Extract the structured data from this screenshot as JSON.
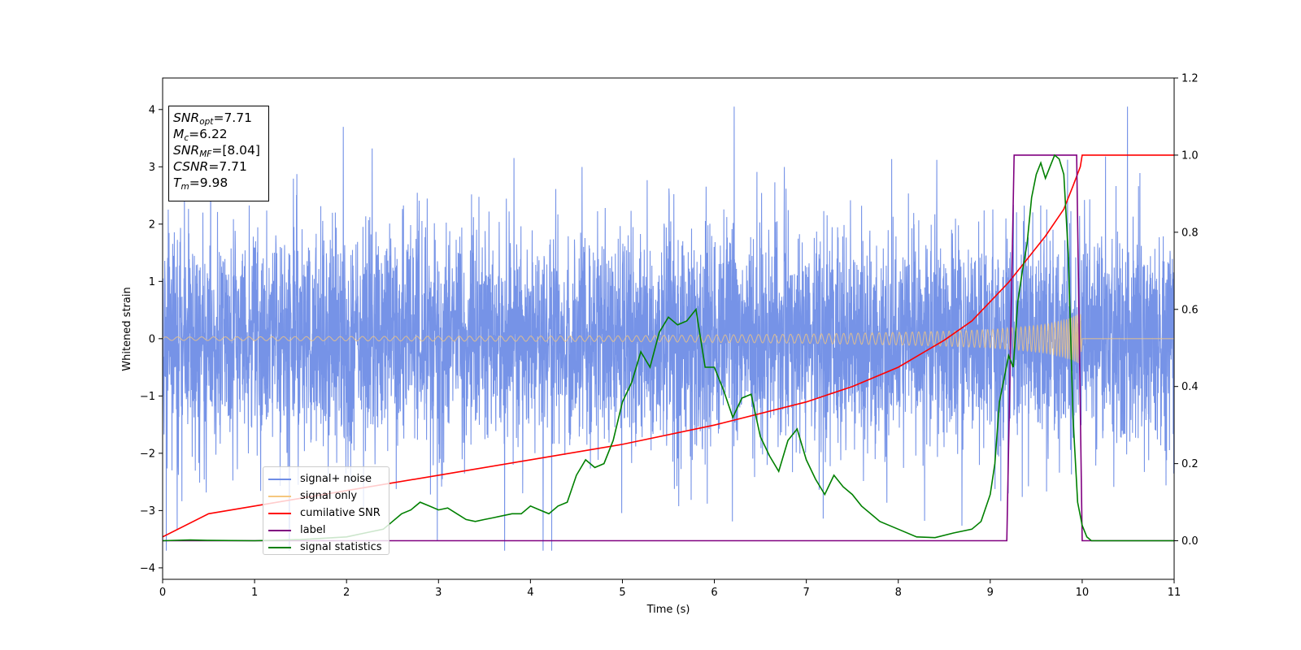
{
  "chart_data": {
    "type": "line",
    "xlabel": "Time (s)",
    "ylabel": "Whitened strain",
    "xlim": [
      0,
      11
    ],
    "ylim_left": [
      -4.2,
      4.55
    ],
    "ylim_right": [
      -0.1,
      1.2
    ],
    "xticks": [
      "0",
      "1",
      "2",
      "3",
      "4",
      "5",
      "6",
      "7",
      "8",
      "9",
      "10",
      "11"
    ],
    "yticks_left": [
      "−4",
      "−3",
      "−2",
      "−1",
      "0",
      "1",
      "2",
      "3",
      "4"
    ],
    "yticks_right": [
      "0.0",
      "0.2",
      "0.4",
      "0.6",
      "0.8",
      "1.0",
      "1.2"
    ],
    "legend_position": "lower-left",
    "info_box": {
      "snr_opt": "7.71",
      "mc": "6.22",
      "snr_mf": "[8.04]",
      "csnr": "7.71",
      "tm": "9.98"
    },
    "series": [
      {
        "name": "signal+ noise",
        "axis": "left",
        "color": "#6f8de6",
        "description_values": "noise band roughly between -2.3 and 2.3 with spikes up to about 4.0 and down to about -3.7, 0 to 11 s"
      },
      {
        "name": "signal only",
        "axis": "left",
        "color": "#f5c77e",
        "envelope": {
          "t": [
            0,
            5,
            7,
            8,
            8.5,
            9,
            9.3,
            9.6,
            9.8,
            9.9,
            9.98,
            10,
            11
          ],
          "amp": [
            0.03,
            0.05,
            0.08,
            0.11,
            0.13,
            0.16,
            0.2,
            0.25,
            0.32,
            0.38,
            0.45,
            0.0,
            0.0
          ]
        }
      },
      {
        "name": "cumilative SNR",
        "axis": "right",
        "color": "#ff0000",
        "x": [
          0,
          0.5,
          1,
          2,
          3,
          4,
          5,
          6,
          7,
          7.5,
          8,
          8.5,
          8.8,
          9,
          9.2,
          9.4,
          9.6,
          9.8,
          9.9,
          9.98,
          10,
          11
        ],
        "y": [
          0.01,
          0.07,
          0.09,
          0.13,
          0.17,
          0.21,
          0.25,
          0.3,
          0.36,
          0.4,
          0.45,
          0.52,
          0.57,
          0.62,
          0.67,
          0.73,
          0.79,
          0.86,
          0.92,
          0.97,
          1.0,
          1.0
        ]
      },
      {
        "name": "label",
        "axis": "right",
        "color": "#800080",
        "x": [
          0,
          9.18,
          9.26,
          9.94,
          10.0,
          11
        ],
        "y": [
          0,
          0,
          1,
          1,
          0,
          0
        ]
      },
      {
        "name": "signal statistics",
        "axis": "right",
        "color": "#008000",
        "x": [
          0,
          0.3,
          0.5,
          1,
          1.5,
          2,
          2.2,
          2.4,
          2.5,
          2.6,
          2.7,
          2.8,
          2.9,
          3.0,
          3.1,
          3.2,
          3.3,
          3.4,
          3.5,
          3.6,
          3.8,
          3.9,
          4.0,
          4.1,
          4.2,
          4.3,
          4.4,
          4.5,
          4.6,
          4.7,
          4.8,
          4.9,
          5.0,
          5.1,
          5.2,
          5.3,
          5.4,
          5.5,
          5.6,
          5.7,
          5.8,
          5.9,
          6.0,
          6.1,
          6.2,
          6.3,
          6.4,
          6.5,
          6.6,
          6.7,
          6.8,
          6.9,
          7.0,
          7.1,
          7.2,
          7.3,
          7.4,
          7.5,
          7.6,
          7.8,
          8.0,
          8.2,
          8.4,
          8.6,
          8.8,
          8.9,
          9.0,
          9.05,
          9.1,
          9.15,
          9.2,
          9.25,
          9.3,
          9.35,
          9.4,
          9.45,
          9.5,
          9.55,
          9.6,
          9.65,
          9.7,
          9.75,
          9.8,
          9.85,
          9.9,
          9.95,
          10.0,
          10.05,
          10.1,
          10.2,
          10.3,
          11
        ],
        "y": [
          0.0,
          0.002,
          0.001,
          0.0,
          0.003,
          0.01,
          0.02,
          0.03,
          0.05,
          0.07,
          0.08,
          0.1,
          0.09,
          0.08,
          0.085,
          0.07,
          0.055,
          0.05,
          0.055,
          0.06,
          0.07,
          0.07,
          0.09,
          0.08,
          0.07,
          0.09,
          0.1,
          0.17,
          0.21,
          0.19,
          0.2,
          0.26,
          0.36,
          0.41,
          0.49,
          0.45,
          0.54,
          0.58,
          0.56,
          0.57,
          0.6,
          0.45,
          0.45,
          0.39,
          0.32,
          0.37,
          0.38,
          0.27,
          0.22,
          0.18,
          0.26,
          0.29,
          0.21,
          0.16,
          0.12,
          0.17,
          0.14,
          0.12,
          0.09,
          0.05,
          0.03,
          0.01,
          0.008,
          0.02,
          0.03,
          0.05,
          0.12,
          0.2,
          0.36,
          0.42,
          0.48,
          0.45,
          0.62,
          0.7,
          0.77,
          0.89,
          0.95,
          0.98,
          0.94,
          0.97,
          1.0,
          0.99,
          0.95,
          0.74,
          0.32,
          0.1,
          0.04,
          0.01,
          0.0,
          0.0,
          0.0,
          0.0
        ]
      }
    ]
  }
}
